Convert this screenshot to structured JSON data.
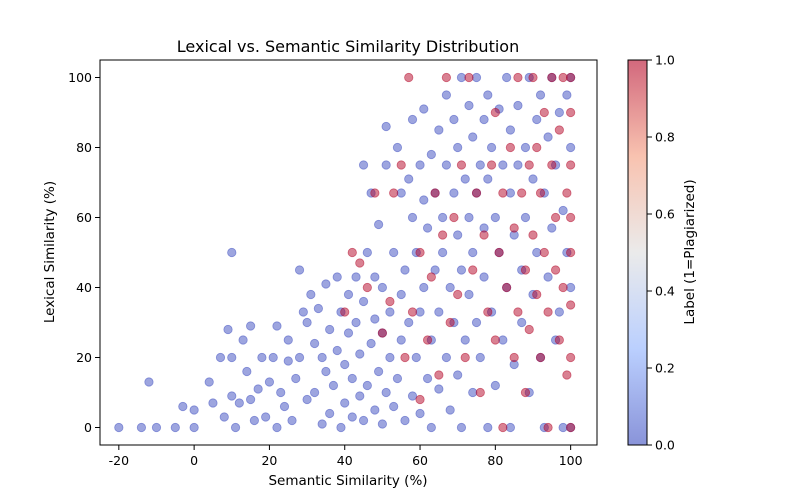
{
  "chart_data": {
    "type": "scatter",
    "title": "Lexical vs. Semantic Similarity Distribution",
    "xlabel": "Semantic Similarity (%)",
    "ylabel": "Lexical Similarity (%)",
    "xlim": [
      -25,
      107
    ],
    "ylim": [
      -5,
      105
    ],
    "xticks": [
      -20,
      0,
      20,
      40,
      60,
      80,
      100
    ],
    "yticks": [
      0,
      20,
      40,
      60,
      80,
      100
    ],
    "grid": false,
    "point_alpha": 0.5,
    "colormap": {
      "name": "coolwarm",
      "low_color": "#3b4cc0",
      "mid_color": "#dddddd",
      "high_color": "#b40426",
      "label": "Label (1=Plagiarized)",
      "range": [
        0.0,
        1.0
      ],
      "ticks": [
        "0.0",
        "0.2",
        "0.4",
        "0.6",
        "0.8",
        "1.0"
      ]
    },
    "series": [
      {
        "values_label": 0,
        "points": [
          [
            -20,
            0
          ],
          [
            -14,
            0
          ],
          [
            -12,
            13
          ],
          [
            -10,
            0
          ],
          [
            -5,
            0
          ],
          [
            -3,
            6
          ],
          [
            0,
            5
          ],
          [
            0,
            0
          ],
          [
            4,
            13
          ],
          [
            5,
            7
          ],
          [
            7,
            20
          ],
          [
            8,
            3
          ],
          [
            9,
            28
          ],
          [
            10,
            50
          ],
          [
            10,
            20
          ],
          [
            10,
            9
          ],
          [
            11,
            0
          ],
          [
            12,
            7
          ],
          [
            13,
            25
          ],
          [
            14,
            16
          ],
          [
            15,
            8
          ],
          [
            15,
            29
          ],
          [
            16,
            2
          ],
          [
            17,
            11
          ],
          [
            18,
            20
          ],
          [
            19,
            3
          ],
          [
            20,
            13
          ],
          [
            21,
            20
          ],
          [
            22,
            0
          ],
          [
            22,
            29
          ],
          [
            23,
            10
          ],
          [
            24,
            6
          ],
          [
            25,
            19
          ],
          [
            25,
            25
          ],
          [
            26,
            2
          ],
          [
            27,
            14
          ],
          [
            28,
            20
          ],
          [
            28,
            45
          ],
          [
            29,
            33
          ],
          [
            30,
            8
          ],
          [
            30,
            30
          ],
          [
            31,
            38
          ],
          [
            32,
            10
          ],
          [
            32,
            24
          ],
          [
            33,
            34
          ],
          [
            34,
            20
          ],
          [
            34,
            1
          ],
          [
            35,
            41
          ],
          [
            35,
            16
          ],
          [
            36,
            4
          ],
          [
            36,
            28
          ],
          [
            37,
            12
          ],
          [
            38,
            22
          ],
          [
            38,
            43
          ],
          [
            39,
            0
          ],
          [
            39,
            33
          ],
          [
            40,
            7
          ],
          [
            40,
            18
          ],
          [
            41,
            38
          ],
          [
            41,
            27
          ],
          [
            42,
            3
          ],
          [
            42,
            14
          ],
          [
            43,
            30
          ],
          [
            43,
            43
          ],
          [
            44,
            9
          ],
          [
            44,
            21
          ],
          [
            45,
            75
          ],
          [
            45,
            36
          ],
          [
            45,
            2
          ],
          [
            46,
            12
          ],
          [
            46,
            50
          ],
          [
            47,
            67
          ],
          [
            47,
            24
          ],
          [
            48,
            5
          ],
          [
            48,
            31
          ],
          [
            48,
            43
          ],
          [
            49,
            16
          ],
          [
            49,
            58
          ],
          [
            50,
            1
          ],
          [
            50,
            27
          ],
          [
            50,
            40
          ],
          [
            51,
            86
          ],
          [
            51,
            75
          ],
          [
            51,
            10
          ],
          [
            52,
            20
          ],
          [
            52,
            33
          ],
          [
            53,
            50
          ],
          [
            53,
            6
          ],
          [
            54,
            80
          ],
          [
            54,
            14
          ],
          [
            55,
            67
          ],
          [
            55,
            25
          ],
          [
            55,
            38
          ],
          [
            56,
            2
          ],
          [
            56,
            45
          ],
          [
            57,
            71
          ],
          [
            57,
            30
          ],
          [
            58,
            88
          ],
          [
            58,
            60
          ],
          [
            58,
            9
          ],
          [
            59,
            20
          ],
          [
            59,
            50
          ],
          [
            60,
            75
          ],
          [
            60,
            4
          ],
          [
            60,
            33
          ],
          [
            61,
            91
          ],
          [
            61,
            65
          ],
          [
            61,
            40
          ],
          [
            62,
            14
          ],
          [
            62,
            57
          ],
          [
            63,
            78
          ],
          [
            63,
            25
          ],
          [
            63,
            0
          ],
          [
            64,
            67
          ],
          [
            64,
            45
          ],
          [
            65,
            85
          ],
          [
            65,
            11
          ],
          [
            65,
            33
          ],
          [
            66,
            60
          ],
          [
            66,
            50
          ],
          [
            67,
            95
          ],
          [
            67,
            75
          ],
          [
            67,
            20
          ],
          [
            68,
            40
          ],
          [
            68,
            5
          ],
          [
            69,
            88
          ],
          [
            69,
            67
          ],
          [
            69,
            30
          ],
          [
            70,
            80
          ],
          [
            70,
            55
          ],
          [
            70,
            15
          ],
          [
            71,
            100
          ],
          [
            71,
            45
          ],
          [
            71,
            0
          ],
          [
            72,
            71
          ],
          [
            72,
            25
          ],
          [
            73,
            92
          ],
          [
            73,
            60
          ],
          [
            73,
            38
          ],
          [
            74,
            83
          ],
          [
            74,
            10
          ],
          [
            74,
            50
          ],
          [
            75,
            100
          ],
          [
            75,
            67
          ],
          [
            75,
            30
          ],
          [
            76,
            75
          ],
          [
            76,
            20
          ],
          [
            77,
            88
          ],
          [
            77,
            57
          ],
          [
            77,
            43
          ],
          [
            78,
            95
          ],
          [
            78,
            71
          ],
          [
            78,
            0
          ],
          [
            79,
            80
          ],
          [
            79,
            33
          ],
          [
            80,
            60
          ],
          [
            80,
            12
          ],
          [
            81,
            91
          ],
          [
            81,
            50
          ],
          [
            82,
            75
          ],
          [
            82,
            25
          ],
          [
            83,
            100
          ],
          [
            83,
            40
          ],
          [
            84,
            85
          ],
          [
            84,
            67
          ],
          [
            84,
            0
          ],
          [
            85,
            55
          ],
          [
            85,
            18
          ],
          [
            86,
            92
          ],
          [
            86,
            75
          ],
          [
            87,
            45
          ],
          [
            87,
            30
          ],
          [
            88,
            80
          ],
          [
            88,
            60
          ],
          [
            89,
            100
          ],
          [
            89,
            10
          ],
          [
            90,
            71
          ],
          [
            90,
            38
          ],
          [
            91,
            88
          ],
          [
            91,
            50
          ],
          [
            92,
            95
          ],
          [
            92,
            20
          ],
          [
            93,
            67
          ],
          [
            93,
            0
          ],
          [
            94,
            83
          ],
          [
            94,
            43
          ],
          [
            95,
            100
          ],
          [
            95,
            57
          ],
          [
            96,
            75
          ],
          [
            96,
            25
          ],
          [
            97,
            90
          ],
          [
            97,
            33
          ],
          [
            98,
            62
          ],
          [
            98,
            0
          ],
          [
            99,
            95
          ],
          [
            99,
            50
          ],
          [
            100,
            100
          ],
          [
            100,
            80
          ],
          [
            100,
            0
          ],
          [
            100,
            40
          ]
        ]
      },
      {
        "values_label": 1,
        "points": [
          [
            40,
            33
          ],
          [
            42,
            50
          ],
          [
            44,
            47
          ],
          [
            46,
            40
          ],
          [
            48,
            67
          ],
          [
            50,
            27
          ],
          [
            52,
            36
          ],
          [
            53,
            67
          ],
          [
            55,
            75
          ],
          [
            56,
            20
          ],
          [
            57,
            100
          ],
          [
            58,
            33
          ],
          [
            60,
            50
          ],
          [
            60,
            8
          ],
          [
            62,
            25
          ],
          [
            63,
            43
          ],
          [
            64,
            67
          ],
          [
            65,
            15
          ],
          [
            66,
            55
          ],
          [
            67,
            100
          ],
          [
            68,
            30
          ],
          [
            69,
            60
          ],
          [
            70,
            38
          ],
          [
            71,
            75
          ],
          [
            72,
            20
          ],
          [
            73,
            100
          ],
          [
            74,
            45
          ],
          [
            75,
            67
          ],
          [
            76,
            10
          ],
          [
            77,
            55
          ],
          [
            78,
            33
          ],
          [
            79,
            75
          ],
          [
            80,
            25
          ],
          [
            80,
            90
          ],
          [
            81,
            50
          ],
          [
            82,
            0
          ],
          [
            82,
            67
          ],
          [
            83,
            40
          ],
          [
            84,
            80
          ],
          [
            85,
            20
          ],
          [
            85,
            57
          ],
          [
            86,
            100
          ],
          [
            86,
            33
          ],
          [
            87,
            67
          ],
          [
            88,
            45
          ],
          [
            88,
            10
          ],
          [
            89,
            75
          ],
          [
            89,
            28
          ],
          [
            90,
            100
          ],
          [
            90,
            55
          ],
          [
            91,
            38
          ],
          [
            91,
            80
          ],
          [
            92,
            20
          ],
          [
            92,
            67
          ],
          [
            93,
            50
          ],
          [
            93,
            90
          ],
          [
            94,
            0
          ],
          [
            94,
            33
          ],
          [
            95,
            75
          ],
          [
            95,
            100
          ],
          [
            96,
            45
          ],
          [
            96,
            60
          ],
          [
            97,
            25
          ],
          [
            97,
            85
          ],
          [
            98,
            100
          ],
          [
            98,
            40
          ],
          [
            99,
            67
          ],
          [
            99,
            15
          ],
          [
            100,
            100
          ],
          [
            100,
            75
          ],
          [
            100,
            50
          ],
          [
            100,
            20
          ],
          [
            100,
            0
          ],
          [
            100,
            35
          ],
          [
            100,
            60
          ],
          [
            100,
            90
          ]
        ]
      }
    ]
  }
}
